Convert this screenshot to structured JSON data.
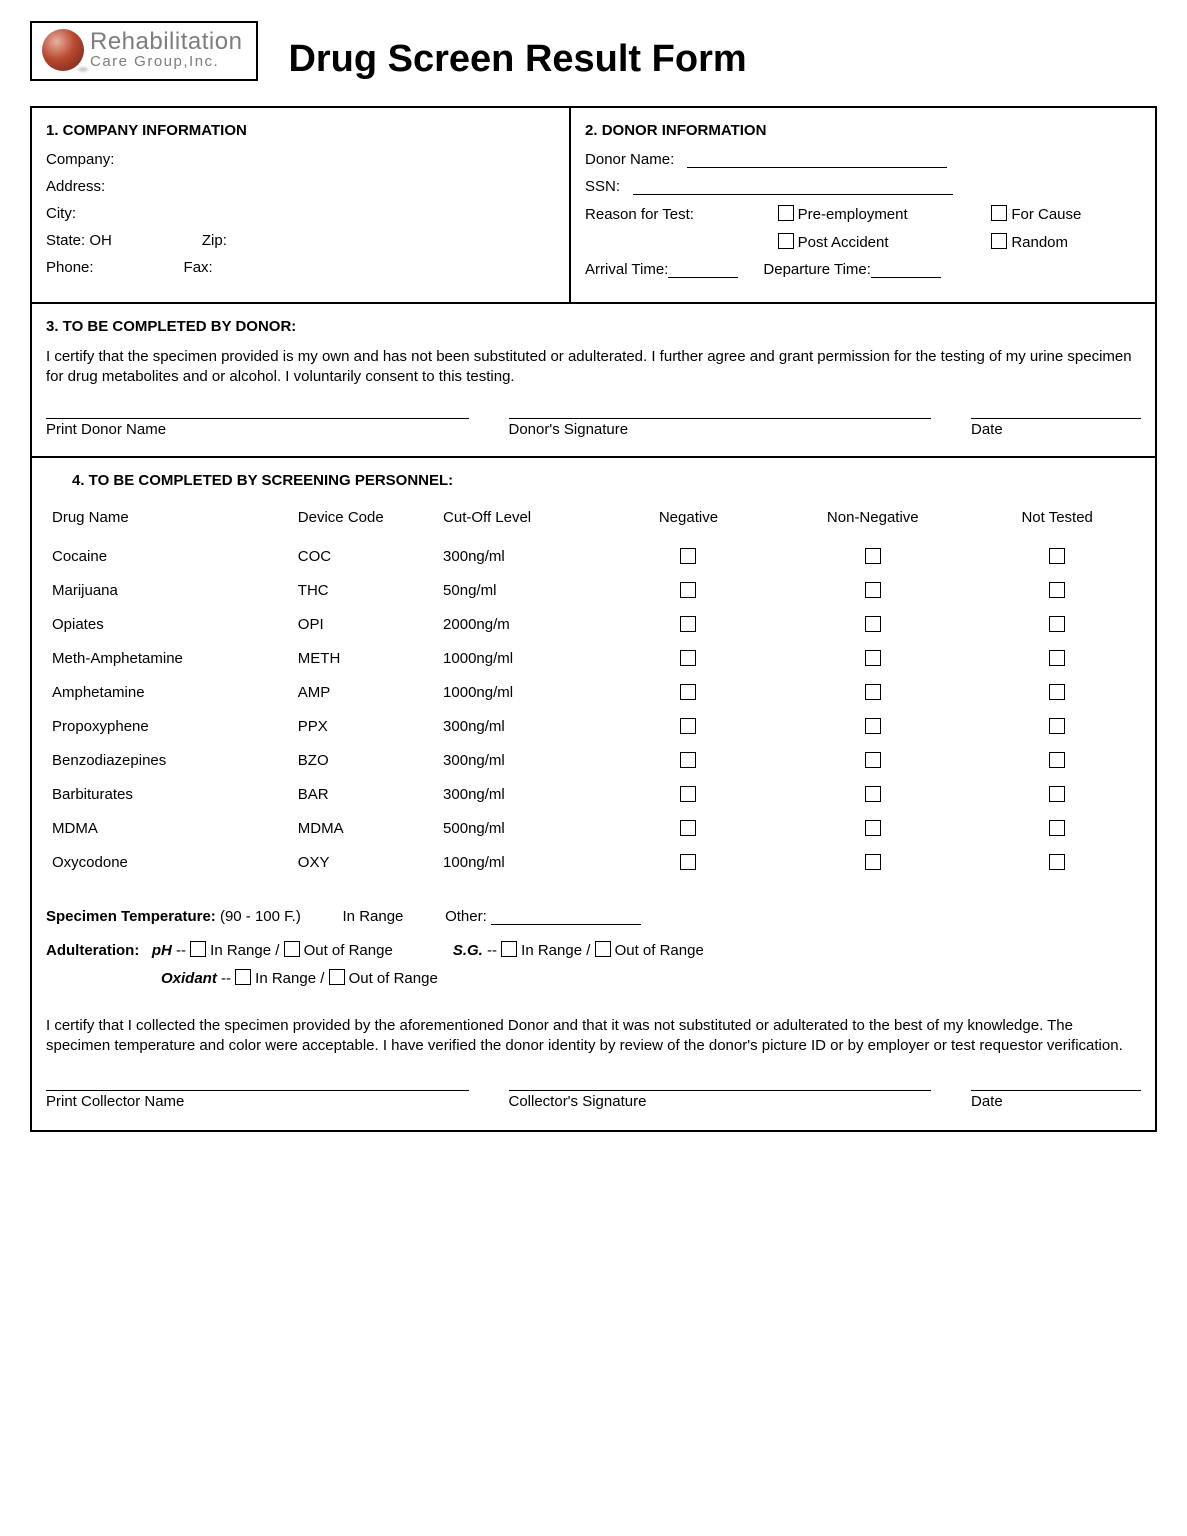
{
  "logo": {
    "line1": "Rehabilitation",
    "line2": "Care Group,Inc."
  },
  "title": "Drug Screen Result Form",
  "sec1": {
    "heading": "1.  COMPANY INFORMATION",
    "company_label": "Company:",
    "address_label": "Address:",
    "city_label": "City:",
    "state_label": "State: OH",
    "zip_label": "Zip:",
    "phone_label": "Phone:",
    "fax_label": "Fax:"
  },
  "sec2": {
    "heading": "2.  DONOR INFORMATION",
    "donor_name_label": "Donor Name:",
    "ssn_label": "SSN:",
    "reason_label": "Reason for Test:",
    "opt_pre": "Pre-employment",
    "opt_cause": "For Cause",
    "opt_post": "Post Accident",
    "opt_random": "Random",
    "arrival_label": "Arrival Time:",
    "departure_label": "Departure Time:"
  },
  "sec3": {
    "heading": "3.  TO BE COMPLETED BY DONOR:",
    "certify": "I certify that the specimen provided is my own and has not been substituted or adulterated.  I further agree and grant permission for the testing of my urine specimen for drug metabolites and or alcohol.  I voluntarily consent to this testing.",
    "print_name": "Print Donor Name",
    "signature": "Donor's Signature",
    "date": "Date"
  },
  "sec4": {
    "heading": "4.   TO BE COMPLETED BY SCREENING PERSONNEL:",
    "cols": {
      "name": "Drug Name",
      "code": "Device Code",
      "cutoff": "Cut-Off Level",
      "neg": "Negative",
      "nonneg": "Non-Negative",
      "not": "Not Tested"
    },
    "rows": [
      {
        "name": "Cocaine",
        "code": "COC",
        "cutoff": "300ng/ml"
      },
      {
        "name": "Marijuana",
        "code": "THC",
        "cutoff": "50ng/ml"
      },
      {
        "name": "Opiates",
        "code": "OPI",
        "cutoff": "2000ng/m"
      },
      {
        "name": "Meth-Amphetamine",
        "code": "METH",
        "cutoff": "1000ng/ml"
      },
      {
        "name": "Amphetamine",
        "code": "AMP",
        "cutoff": "1000ng/ml"
      },
      {
        "name": "Propoxyphene",
        "code": "PPX",
        "cutoff": "300ng/ml"
      },
      {
        "name": "Benzodiazepines",
        "code": "BZO",
        "cutoff": "300ng/ml"
      },
      {
        "name": "Barbiturates",
        "code": "BAR",
        "cutoff": "300ng/ml"
      },
      {
        "name": "MDMA",
        "code": "MDMA",
        "cutoff": "500ng/ml"
      },
      {
        "name": "Oxycodone",
        "code": "OXY",
        "cutoff": "100ng/ml"
      }
    ],
    "specimen_label": "Specimen Temperature:",
    "specimen_range": "(90 - 100 F.)",
    "in_range": "In Range",
    "other": "Other:",
    "adulteration_label": "Adulteration:",
    "ph_label": "pH",
    "sg_label": "S.G.",
    "oxidant_label": "Oxidant",
    "in_range_opt": "In Range",
    "out_range_opt": "Out of Range",
    "cert2": "I certify that I collected the specimen provided by the aforementioned Donor and that it was not substituted or adulterated to the best of my knowledge.  The specimen temperature and color were acceptable.   I have verified the donor identity by review of the donor's picture ID or by employer or test requestor verification.",
    "print_collector": "Print Collector Name",
    "collector_sig": "Collector's Signature",
    "date": "Date"
  }
}
